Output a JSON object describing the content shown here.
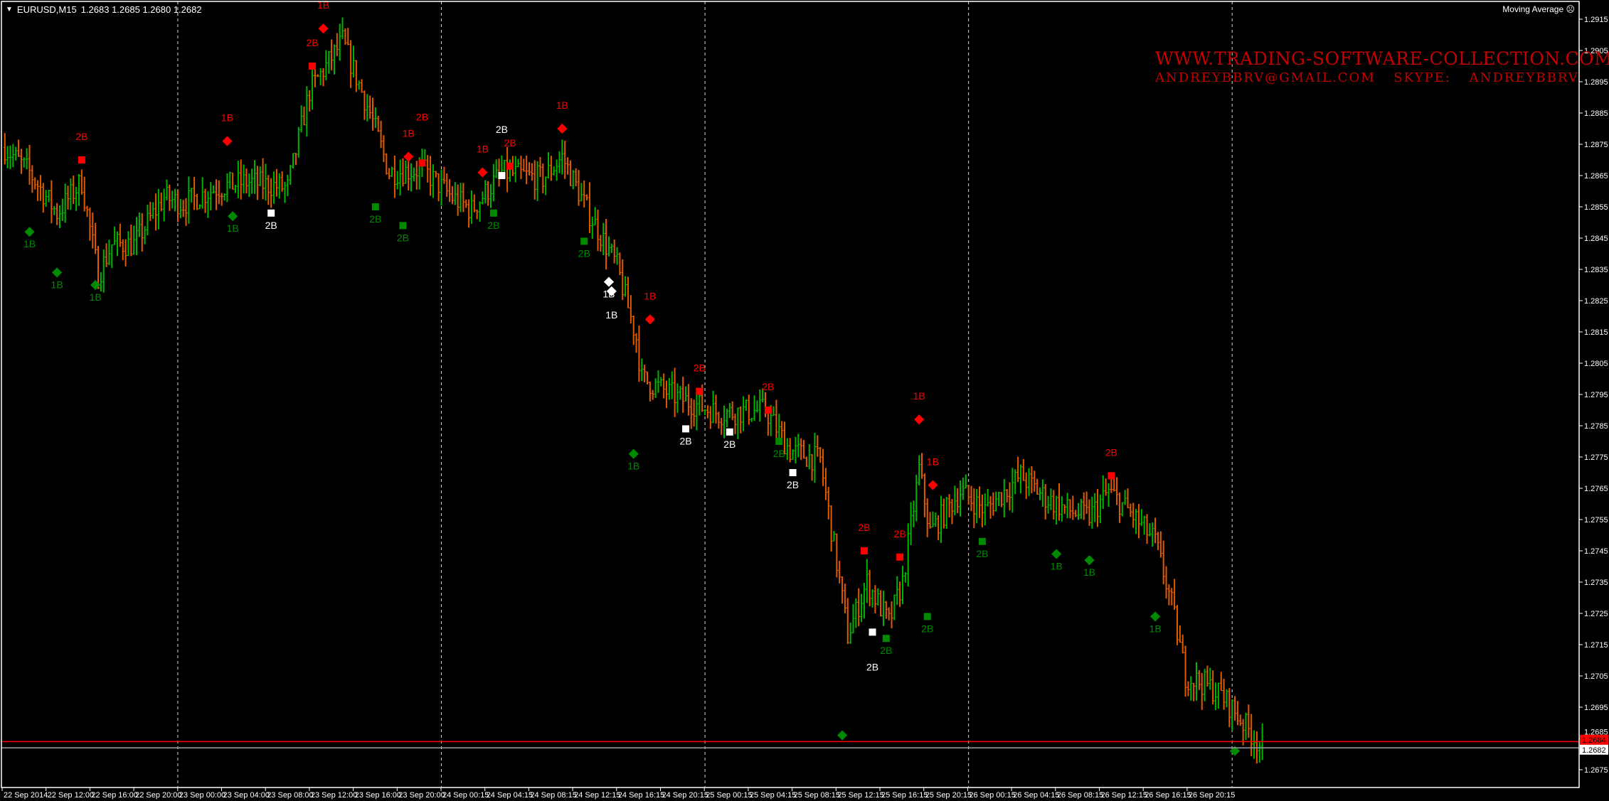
{
  "header": {
    "symbol": "EURUSD,M15",
    "ohlc": "1.2683 1.2685 1.2680 1.2682"
  },
  "indicator": {
    "label": "Moving Average",
    "icon": "sad-face-icon"
  },
  "watermark": {
    "line1": "WWW.TRADING-SOFTWARE-COLLECTION.COM",
    "line2": "ANDREYBBRV@GMAIL.COM   SKYPE: ANDREYBBRV",
    "color": "#c40000"
  },
  "chart_data": {
    "type": "line",
    "style": "ohlc-bars",
    "timeframe": "M15",
    "ylim": [
      1.267,
      1.292
    ],
    "grid": false,
    "colors": {
      "up": "#00b400",
      "down": "#e05a00",
      "bid_line": "#ff0000",
      "last_line": "#9aa0a8"
    },
    "current_price": {
      "bid": "1.2684",
      "last": "1.2682"
    },
    "price_ticks": [
      "1.2915",
      "1.2905",
      "1.2895",
      "1.2885",
      "1.2875",
      "1.2865",
      "1.2855",
      "1.2845",
      "1.2835",
      "1.2825",
      "1.2815",
      "1.2805",
      "1.2795",
      "1.2785",
      "1.2775",
      "1.2765",
      "1.2755",
      "1.2745",
      "1.2735",
      "1.2725",
      "1.2715",
      "1.2705",
      "1.2695",
      "1.2685",
      "1.2675"
    ],
    "time_ticks": [
      "22 Sep 2014",
      "22 Sep 12:00",
      "22 Sep 16:00",
      "22 Sep 20:00",
      "23 Sep 00:00",
      "23 Sep 04:00",
      "23 Sep 08:00",
      "23 Sep 12:00",
      "23 Sep 16:00",
      "23 Sep 20:00",
      "24 Sep 00:15",
      "24 Sep 04:15",
      "24 Sep 08:15",
      "24 Sep 12:15",
      "24 Sep 16:15",
      "24 Sep 20:15",
      "25 Sep 00:15",
      "25 Sep 04:15",
      "25 Sep 08:15",
      "25 Sep 12:15",
      "25 Sep 16:15",
      "25 Sep 20:15",
      "26 Sep 00:15",
      "26 Sep 04:15",
      "26 Sep 08:15",
      "26 Sep 12:15",
      "26 Sep 16:15",
      "26 Sep 20:15"
    ],
    "day_separators": [
      "2014-09-23T00:00",
      "2014-09-24T00:00",
      "2014-09-25T00:00",
      "2014-09-26T00:00",
      "2014-09-27T00:00"
    ],
    "price_path": [
      [
        "2014-09-22T08:15",
        1.2874
      ],
      [
        "2014-09-22T10:30",
        1.2866
      ],
      [
        "2014-09-22T13:00",
        1.2853
      ],
      [
        "2014-09-22T15:15",
        1.2863
      ],
      [
        "2014-09-22T16:45",
        1.2833
      ],
      [
        "2014-09-22T18:00",
        1.2843
      ],
      [
        "2014-09-22T20:00",
        1.2843
      ],
      [
        "2014-09-22T22:45",
        1.2858
      ],
      [
        "2014-09-23T00:30",
        1.2856
      ],
      [
        "2014-09-23T03:30",
        1.2861
      ],
      [
        "2014-09-23T06:15",
        1.2863
      ],
      [
        "2014-09-23T10:00",
        1.2861
      ],
      [
        "2014-09-23T12:00",
        1.2892
      ],
      [
        "2014-09-23T15:00",
        1.2908
      ],
      [
        "2014-09-23T17:30",
        1.2885
      ],
      [
        "2014-09-23T19:15",
        1.2866
      ],
      [
        "2014-09-23T22:15",
        1.2867
      ],
      [
        "2014-09-24T01:00",
        1.2858
      ],
      [
        "2014-09-24T02:45",
        1.2854
      ],
      [
        "2014-09-24T05:30",
        1.2866
      ],
      [
        "2014-09-24T09:15",
        1.2864
      ],
      [
        "2014-09-24T11:00",
        1.2871
      ],
      [
        "2014-09-24T13:00",
        1.2856
      ],
      [
        "2014-09-24T16:00",
        1.2836
      ],
      [
        "2014-09-24T17:45",
        1.2813
      ],
      [
        "2014-09-24T18:15",
        1.28
      ],
      [
        "2014-09-24T21:30",
        1.2794
      ],
      [
        "2014-09-25T01:15",
        1.2789
      ],
      [
        "2014-09-25T05:30",
        1.279
      ],
      [
        "2014-09-25T07:45",
        1.2777
      ],
      [
        "2014-09-25T10:30",
        1.2774
      ],
      [
        "2014-09-25T12:00",
        1.2741
      ],
      [
        "2014-09-25T13:00",
        1.2718
      ],
      [
        "2014-09-25T14:45",
        1.2735
      ],
      [
        "2014-09-25T16:45",
        1.2722
      ],
      [
        "2014-09-25T18:00",
        1.2735
      ],
      [
        "2014-09-25T19:30",
        1.2771
      ],
      [
        "2014-09-25T20:30",
        1.2751
      ],
      [
        "2014-09-25T23:15",
        1.2764
      ],
      [
        "2014-09-26T01:30",
        1.2758
      ],
      [
        "2014-09-26T04:45",
        1.2769
      ],
      [
        "2014-09-26T07:00",
        1.2762
      ],
      [
        "2014-09-26T09:00",
        1.2758
      ],
      [
        "2014-09-26T11:00",
        1.2756
      ],
      [
        "2014-09-26T12:45",
        1.2764
      ],
      [
        "2014-09-26T14:30",
        1.2758
      ],
      [
        "2014-09-26T17:00",
        1.2748
      ],
      [
        "2014-09-26T18:30",
        1.2728
      ],
      [
        "2014-09-26T19:45",
        1.2705
      ],
      [
        "2014-09-26T21:45",
        1.2702
      ],
      [
        "2014-09-26T23:00",
        1.2699
      ],
      [
        "2014-09-27T01:00",
        1.269
      ],
      [
        "2014-09-27T02:45",
        1.2682
      ]
    ],
    "signals": [
      {
        "t": "2014-09-23T13:15",
        "p": 1.2912,
        "text": "1B",
        "color": "#ff0000",
        "shape": "diamond",
        "pos": "above"
      },
      {
        "t": "2014-09-23T12:15",
        "p": 1.29,
        "text": "2B",
        "color": "#ff0000",
        "shape": "square",
        "pos": "above"
      },
      {
        "t": "2014-09-22T15:15",
        "p": 1.287,
        "text": "2B",
        "color": "#ff0000",
        "shape": "square",
        "pos": "above"
      },
      {
        "t": "2014-09-23T04:30",
        "p": 1.2876,
        "text": "1B",
        "color": "#ff0000",
        "shape": "diamond",
        "pos": "above"
      },
      {
        "t": "2014-09-23T21:00",
        "p": 1.2871,
        "text": "1B",
        "color": "#ff0000",
        "shape": "diamond",
        "pos": "above"
      },
      {
        "t": "2014-09-23T22:15",
        "p": 1.2869,
        "text": "2B",
        "color": "#ff0000",
        "shape": "square",
        "pos": "above"
      },
      {
        "t": "2014-09-24T03:45",
        "p": 1.2866,
        "text": "1B",
        "color": "#ff0000",
        "shape": "diamond",
        "pos": "above"
      },
      {
        "t": "2014-09-24T06:15",
        "p": 1.2868,
        "text": "2B",
        "color": "#ff0000",
        "shape": "square",
        "pos": "above"
      },
      {
        "t": "2014-09-24T11:00",
        "p": 1.288,
        "text": "1B",
        "color": "#ff0000",
        "shape": "diamond",
        "pos": "above"
      },
      {
        "t": "2014-09-24T19:00",
        "p": 1.2819,
        "text": "1B",
        "color": "#ff0000",
        "shape": "diamond",
        "pos": "above"
      },
      {
        "t": "2014-09-24T23:30",
        "p": 1.2796,
        "text": "2B",
        "color": "#ff0000",
        "shape": "square",
        "pos": "above"
      },
      {
        "t": "2014-09-25T05:45",
        "p": 1.279,
        "text": "2B",
        "color": "#ff0000",
        "shape": "square",
        "pos": "above"
      },
      {
        "t": "2014-09-25T19:30",
        "p": 1.2787,
        "text": "1B",
        "color": "#ff0000",
        "shape": "diamond",
        "pos": "above"
      },
      {
        "t": "2014-09-25T20:45",
        "p": 1.2766,
        "text": "1B",
        "color": "#ff0000",
        "shape": "diamond",
        "pos": "above"
      },
      {
        "t": "2014-09-25T14:30",
        "p": 1.2745,
        "text": "2B",
        "color": "#ff0000",
        "shape": "square",
        "pos": "above"
      },
      {
        "t": "2014-09-25T17:45",
        "p": 1.2743,
        "text": "2B",
        "color": "#ff0000",
        "shape": "square",
        "pos": "above"
      },
      {
        "t": "2014-09-26T13:00",
        "p": 1.2769,
        "text": "2B",
        "color": "#ff0000",
        "shape": "square",
        "pos": "above"
      },
      {
        "t": "2014-09-22T10:30",
        "p": 1.2847,
        "text": "1B",
        "color": "#008a00",
        "shape": "diamond",
        "pos": "below"
      },
      {
        "t": "2014-09-22T13:00",
        "p": 1.2834,
        "text": "1B",
        "color": "#008a00",
        "shape": "diamond",
        "pos": "below"
      },
      {
        "t": "2014-09-22T16:30",
        "p": 1.283,
        "text": "1B",
        "color": "#008a00",
        "shape": "diamond",
        "pos": "below"
      },
      {
        "t": "2014-09-23T05:00",
        "p": 1.2852,
        "text": "1B",
        "color": "#008a00",
        "shape": "diamond",
        "pos": "below"
      },
      {
        "t": "2014-09-23T18:00",
        "p": 1.2855,
        "text": "2B",
        "color": "#008a00",
        "shape": "square",
        "pos": "below"
      },
      {
        "t": "2014-09-23T20:30",
        "p": 1.2849,
        "text": "2B",
        "color": "#008a00",
        "shape": "square",
        "pos": "below"
      },
      {
        "t": "2014-09-24T04:45",
        "p": 1.2853,
        "text": "2B",
        "color": "#008a00",
        "shape": "square",
        "pos": "below"
      },
      {
        "t": "2014-09-24T13:00",
        "p": 1.2844,
        "text": "2B",
        "color": "#008a00",
        "shape": "square",
        "pos": "below"
      },
      {
        "t": "2014-09-24T17:30",
        "p": 1.2776,
        "text": "1B",
        "color": "#008a00",
        "shape": "diamond",
        "pos": "below"
      },
      {
        "t": "2014-09-25T06:45",
        "p": 1.278,
        "text": "2B",
        "color": "#008a00",
        "shape": "square",
        "pos": "below"
      },
      {
        "t": "2014-09-25T12:30",
        "p": 1.2686,
        "text": "",
        "color": "#008a00",
        "shape": "diamond",
        "pos": "below"
      },
      {
        "t": "2014-09-25T16:30",
        "p": 1.2717,
        "text": "2B",
        "color": "#008a00",
        "shape": "square",
        "pos": "below"
      },
      {
        "t": "2014-09-25T20:15",
        "p": 1.2724,
        "text": "2B",
        "color": "#008a00",
        "shape": "square",
        "pos": "below"
      },
      {
        "t": "2014-09-26T01:15",
        "p": 1.2748,
        "text": "2B",
        "color": "#008a00",
        "shape": "square",
        "pos": "below"
      },
      {
        "t": "2014-09-26T08:00",
        "p": 1.2744,
        "text": "1B",
        "color": "#008a00",
        "shape": "diamond",
        "pos": "below"
      },
      {
        "t": "2014-09-26T11:00",
        "p": 1.2742,
        "text": "1B",
        "color": "#008a00",
        "shape": "diamond",
        "pos": "below"
      },
      {
        "t": "2014-09-26T17:00",
        "p": 1.2724,
        "text": "1B",
        "color": "#008a00",
        "shape": "diamond",
        "pos": "below"
      },
      {
        "t": "2014-09-27T00:15",
        "p": 1.2681,
        "text": "",
        "color": "#008a00",
        "shape": "diamond",
        "pos": "below"
      },
      {
        "t": "2014-09-23T08:30",
        "p": 1.2853,
        "text": "2B",
        "color": "#ffffff",
        "shape": "square",
        "pos": "below"
      },
      {
        "t": "2014-09-24T05:30",
        "p": 1.2865,
        "text": "2B",
        "color": "#ffffff",
        "shape": "square",
        "pos": "above"
      },
      {
        "t": "2014-09-24T15:15",
        "p": 1.2831,
        "text": "1B",
        "color": "#ffffff",
        "shape": "diamond",
        "pos": "below"
      },
      {
        "t": "2014-09-24T15:30",
        "p": 1.2828,
        "text": "1B",
        "color": "#ffffff",
        "shape": "diamond",
        "pos": "below"
      },
      {
        "t": "2014-09-24T22:15",
        "p": 1.2784,
        "text": "2B",
        "color": "#ffffff",
        "shape": "square",
        "pos": "below"
      },
      {
        "t": "2014-09-25T02:15",
        "p": 1.2783,
        "text": "2B",
        "color": "#ffffff",
        "shape": "square",
        "pos": "below"
      },
      {
        "t": "2014-09-25T08:00",
        "p": 1.277,
        "text": "2B",
        "color": "#ffffff",
        "shape": "square",
        "pos": "below"
      },
      {
        "t": "2014-09-25T15:15",
        "p": 1.2719,
        "text": "2B",
        "color": "#ffffff",
        "shape": "square",
        "pos": "below"
      }
    ]
  }
}
